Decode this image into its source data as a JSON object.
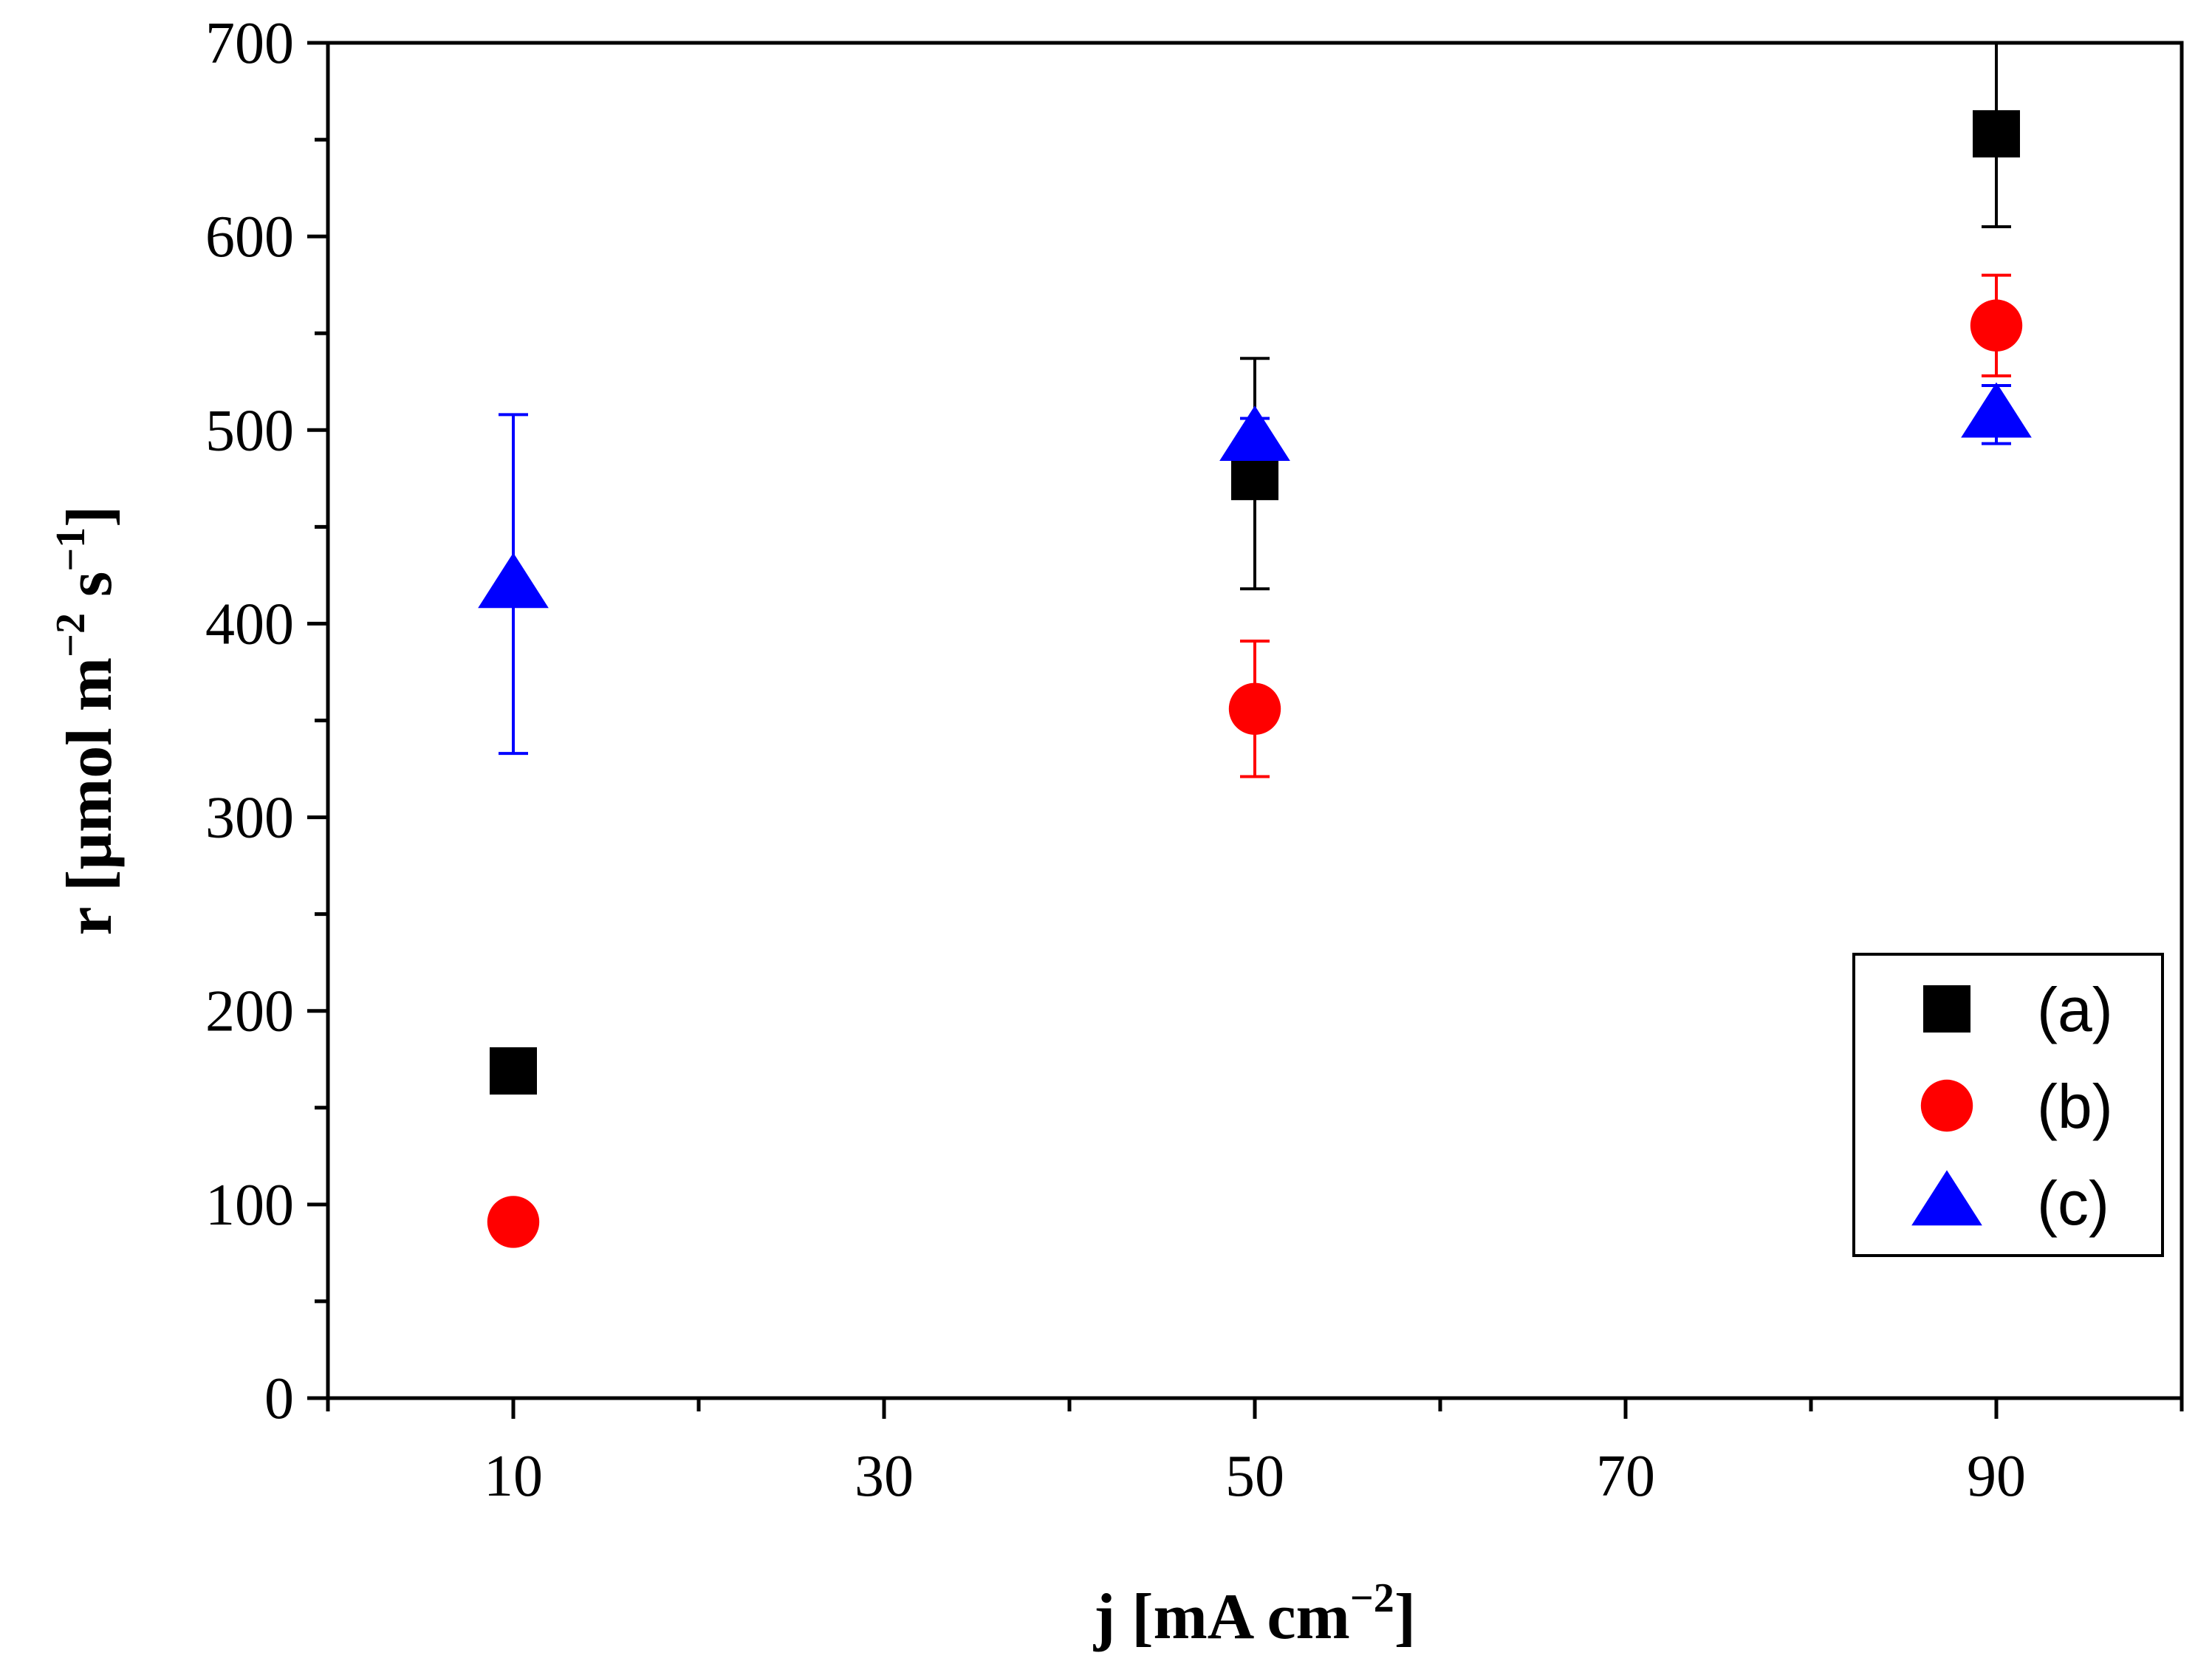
{
  "chart_data": {
    "type": "scatter",
    "xlabel": {
      "main": "j [mA cm",
      "sup": "−2",
      "end": "]"
    },
    "ylabel": {
      "part1": "r [µmol m",
      "sup1": "−2",
      "part2": " s",
      "sup2": "−1",
      "end": "]"
    },
    "xlim": [
      0,
      100
    ],
    "ylim": [
      0,
      700
    ],
    "x_major_ticks": [
      10,
      30,
      50,
      70,
      90
    ],
    "x_minor_ticks": [
      0,
      20,
      40,
      60,
      80,
      100
    ],
    "x_tick_labels": [
      "10",
      "30",
      "50",
      "70",
      "90"
    ],
    "y_major_ticks": [
      0,
      100,
      200,
      300,
      400,
      500,
      600,
      700
    ],
    "y_tick_labels": [
      "0",
      "100",
      "200",
      "300",
      "400",
      "500",
      "600",
      "700"
    ],
    "y_minor_ticks": [
      50,
      150,
      250,
      350,
      450,
      550,
      650
    ],
    "grid": false,
    "legend_position": "bottom-right",
    "series": [
      {
        "name": "(a)",
        "marker": "square",
        "color": "#000000",
        "points": [
          {
            "x": 10,
            "y": 169,
            "err_low": null,
            "err_high": null
          },
          {
            "x": 50,
            "y": 476,
            "err_low": 418,
            "err_high": 537
          },
          {
            "x": 90,
            "y": 653,
            "err_low": 605,
            "err_high": 700
          }
        ]
      },
      {
        "name": "(b)",
        "marker": "circle",
        "color": "#ff0000",
        "points": [
          {
            "x": 10,
            "y": 91,
            "err_low": 84,
            "err_high": 100
          },
          {
            "x": 50,
            "y": 356,
            "err_low": 321,
            "err_high": 391
          },
          {
            "x": 90,
            "y": 554,
            "err_low": 528,
            "err_high": 580
          }
        ]
      },
      {
        "name": "(c)",
        "marker": "triangle",
        "color": "#0000ff",
        "points": [
          {
            "x": 10,
            "y": 420,
            "err_low": 333,
            "err_high": 508
          },
          {
            "x": 50,
            "y": 496,
            "err_low": 486,
            "err_high": 506
          },
          {
            "x": 90,
            "y": 508,
            "err_low": 493,
            "err_high": 523
          }
        ]
      }
    ]
  }
}
